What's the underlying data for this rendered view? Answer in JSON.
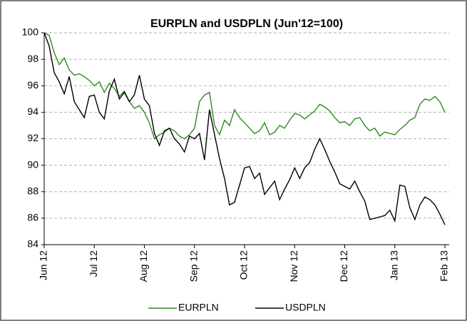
{
  "chart_data": {
    "type": "line",
    "title": "EURPLN and USDPLN (Jun'12=100)",
    "categories": [
      "Jun 12",
      null,
      null,
      null,
      null,
      null,
      null,
      null,
      null,
      null,
      "Jul 12",
      null,
      null,
      null,
      null,
      null,
      null,
      null,
      null,
      null,
      "Aug 12",
      null,
      null,
      null,
      null,
      null,
      null,
      null,
      null,
      null,
      "Sep 12",
      null,
      null,
      null,
      null,
      null,
      null,
      null,
      null,
      null,
      "Oct 12",
      null,
      null,
      null,
      null,
      null,
      null,
      null,
      null,
      null,
      "Nov 12",
      null,
      null,
      null,
      null,
      null,
      null,
      null,
      null,
      null,
      "Dec 12",
      null,
      null,
      null,
      null,
      null,
      null,
      null,
      null,
      null,
      "Jan 13",
      null,
      null,
      null,
      null,
      null,
      null,
      null,
      null,
      null,
      "Feb 13"
    ],
    "series": [
      {
        "name": "EURPLN",
        "color": "#2e8b20",
        "values": [
          100,
          99.8,
          98.5,
          97.6,
          98.1,
          97.2,
          96.8,
          96.9,
          96.7,
          96.4,
          96.0,
          96.3,
          95.5,
          96.2,
          95.8,
          95.2,
          95.6,
          94.8,
          94.3,
          94.5,
          94.0,
          93.2,
          92.0,
          92.3,
          92.5,
          92.8,
          92.6,
          92.2,
          92.0,
          92.3,
          92.8,
          94.8,
          95.3,
          95.5,
          93.0,
          92.3,
          93.4,
          93.0,
          94.2,
          93.6,
          93.2,
          92.8,
          92.4,
          92.6,
          93.2,
          92.3,
          92.5,
          93.0,
          92.8,
          93.4,
          93.9,
          93.8,
          93.5,
          93.8,
          94.1,
          94.6,
          94.4,
          94.1,
          93.6,
          93.2,
          93.3,
          93.0,
          93.5,
          93.6,
          93.0,
          92.6,
          92.8,
          92.2,
          92.5,
          92.4,
          92.3,
          92.7,
          93.0,
          93.4,
          93.6,
          94.6,
          95.0,
          94.9,
          95.2,
          94.8,
          94.0
        ]
      },
      {
        "name": "USDPLN",
        "color": "#000000",
        "values": [
          100,
          99.0,
          97.0,
          96.3,
          95.4,
          96.7,
          94.8,
          94.2,
          93.6,
          95.2,
          95.3,
          94.0,
          93.5,
          95.6,
          96.5,
          95.0,
          95.5,
          94.8,
          95.3,
          96.8,
          95.0,
          94.5,
          92.4,
          91.5,
          92.6,
          92.8,
          92.0,
          91.6,
          91.0,
          92.2,
          92.0,
          92.4,
          90.4,
          94.2,
          92.3,
          90.5,
          89.0,
          87.0,
          87.2,
          88.5,
          89.8,
          89.9,
          89.0,
          89.4,
          87.8,
          88.3,
          88.8,
          87.4,
          88.2,
          88.9,
          89.8,
          89.0,
          89.8,
          90.2,
          91.2,
          92.0,
          91.2,
          90.3,
          89.5,
          88.6,
          88.4,
          88.2,
          88.8,
          88.0,
          87.3,
          85.9,
          86.0,
          86.1,
          86.2,
          86.6,
          85.8,
          88.5,
          88.4,
          86.8,
          85.9,
          87.0,
          87.6,
          87.4,
          87.0,
          86.3,
          85.5
        ]
      }
    ],
    "ylim": [
      84,
      100
    ],
    "yticks": [
      84,
      86,
      88,
      90,
      92,
      94,
      96,
      98,
      100
    ],
    "grid": true,
    "legend": "bottom"
  }
}
